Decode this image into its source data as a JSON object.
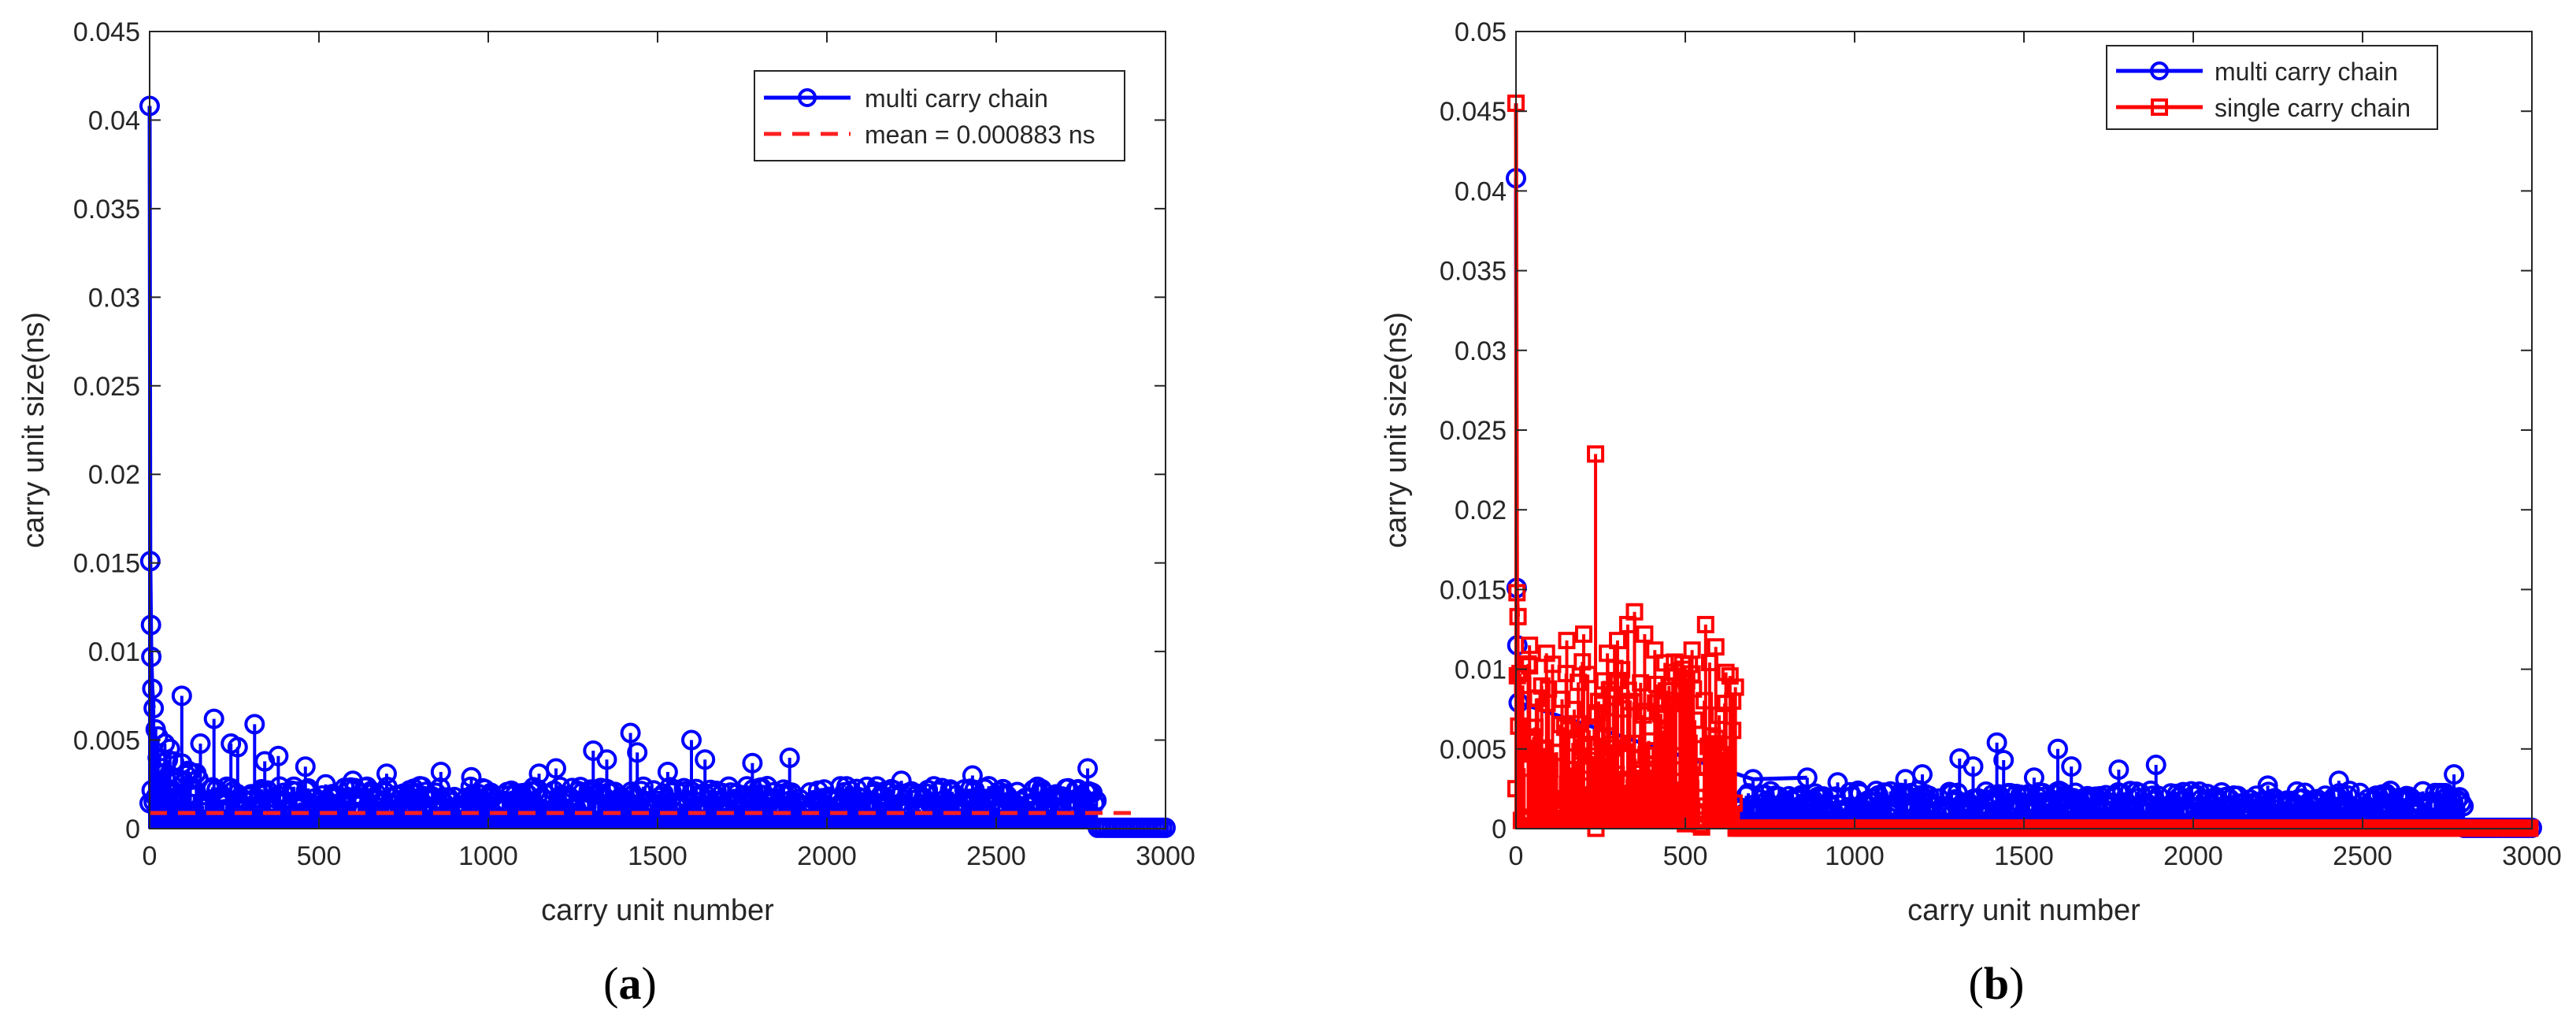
{
  "figure": {
    "panels": [
      {
        "key": "a",
        "label_open": "(",
        "label_letter": "a",
        "label_close": ")"
      },
      {
        "key": "b",
        "label_open": "(",
        "label_letter": "b",
        "label_close": ")"
      }
    ]
  },
  "chart_data": [
    {
      "panel": "a",
      "type": "scatter",
      "style": "stem",
      "title": "",
      "xlabel": "carry unit number",
      "ylabel": "carry unit size(ns)",
      "xlim": [
        0,
        3000
      ],
      "ylim": [
        0,
        0.045
      ],
      "xticks": [
        0,
        500,
        1000,
        1500,
        2000,
        2500,
        3000
      ],
      "xtick_labels": [
        "0",
        "500",
        "1000",
        "1500",
        "2000",
        "2500",
        "3000"
      ],
      "yticks": [
        0,
        0.005,
        0.01,
        0.015,
        0.02,
        0.025,
        0.03,
        0.035,
        0.04,
        0.045
      ],
      "ytick_labels": [
        "0",
        "0.005",
        "0.01",
        "0.015",
        "0.02",
        "0.025",
        "0.03",
        "0.035",
        "0.04",
        "0.045"
      ],
      "grid": false,
      "legend_position": "top-right",
      "series": [
        {
          "name": "multi carry chain",
          "marker": "circle",
          "color": "#0000FF",
          "points": [
            [
              0,
              0.0408
            ],
            [
              2,
              0.0151
            ],
            [
              4,
              0.0115
            ],
            [
              5,
              0.0097
            ],
            [
              8,
              0.0079
            ],
            [
              12,
              0.0068
            ],
            [
              18,
              0.0056
            ],
            [
              25,
              0.0052
            ],
            [
              45,
              0.0048
            ],
            [
              60,
              0.0045
            ],
            [
              95,
              0.0075
            ],
            [
              150,
              0.0048
            ],
            [
              190,
              0.0062
            ],
            [
              240,
              0.0048
            ],
            [
              260,
              0.0046
            ],
            [
              310,
              0.0059
            ],
            [
              340,
              0.0038
            ],
            [
              380,
              0.0041
            ],
            [
              460,
              0.0035
            ],
            [
              520,
              0.0025
            ],
            [
              600,
              0.0027
            ],
            [
              700,
              0.0031
            ],
            [
              860,
              0.0032
            ],
            [
              950,
              0.0029
            ],
            [
              1150,
              0.0031
            ],
            [
              1200,
              0.0034
            ],
            [
              1310,
              0.0044
            ],
            [
              1350,
              0.0039
            ],
            [
              1420,
              0.0054
            ],
            [
              1440,
              0.0043
            ],
            [
              1530,
              0.0032
            ],
            [
              1600,
              0.005
            ],
            [
              1640,
              0.0039
            ],
            [
              1780,
              0.0037
            ],
            [
              1890,
              0.004
            ],
            [
              2220,
              0.0027
            ],
            [
              2430,
              0.003
            ],
            [
              2770,
              0.0034
            ]
          ]
        },
        {
          "name": "mean = 0.000883 ns",
          "line_style": "dashed",
          "color": "#FF2020",
          "x": [
            0,
            2900
          ],
          "y": [
            0.000883,
            0.000883
          ]
        }
      ],
      "annotations": [
        "Dense stems of height ≈0.001–0.003 ns across 0–2800; values near 0 for 2800–3000"
      ]
    },
    {
      "panel": "b",
      "type": "scatter",
      "style": "stem",
      "title": "",
      "xlabel": "carry unit number",
      "ylabel": "carry unit size(ns)",
      "xlim": [
        0,
        3000
      ],
      "ylim": [
        0,
        0.05
      ],
      "xticks": [
        0,
        500,
        1000,
        1500,
        2000,
        2500,
        3000
      ],
      "xtick_labels": [
        "0",
        "500",
        "1000",
        "1500",
        "2000",
        "2500",
        "3000"
      ],
      "yticks": [
        0,
        0.005,
        0.01,
        0.015,
        0.02,
        0.025,
        0.03,
        0.035,
        0.04,
        0.045,
        0.05
      ],
      "ytick_labels": [
        "0",
        "0.005",
        "0.01",
        "0.015",
        "0.02",
        "0.025",
        "0.03",
        "0.035",
        "0.04",
        "0.045",
        "0.05"
      ],
      "grid": false,
      "legend_position": "top-right",
      "series": [
        {
          "name": "multi carry chain",
          "marker": "circle",
          "color": "#0000FF",
          "points": [
            [
              0,
              0.0408
            ],
            [
              2,
              0.0151
            ],
            [
              4,
              0.0115
            ],
            [
              8,
              0.0079
            ],
            [
              700,
              0.0031
            ],
            [
              860,
              0.0032
            ],
            [
              950,
              0.0029
            ],
            [
              1150,
              0.0031
            ],
            [
              1200,
              0.0034
            ],
            [
              1310,
              0.0044
            ],
            [
              1350,
              0.0039
            ],
            [
              1420,
              0.0054
            ],
            [
              1440,
              0.0043
            ],
            [
              1530,
              0.0032
            ],
            [
              1600,
              0.005
            ],
            [
              1640,
              0.0039
            ],
            [
              1780,
              0.0037
            ],
            [
              1890,
              0.004
            ],
            [
              2220,
              0.0027
            ],
            [
              2430,
              0.003
            ],
            [
              2770,
              0.0034
            ]
          ]
        },
        {
          "name": "single carry chain",
          "marker": "square",
          "color": "#FF0000",
          "points": [
            [
              0,
              0.0455
            ],
            [
              3,
              0.0148
            ],
            [
              6,
              0.0133
            ],
            [
              40,
              0.0115
            ],
            [
              90,
              0.011
            ],
            [
              150,
              0.0118
            ],
            [
              200,
              0.0122
            ],
            [
              235,
              0.0235
            ],
            [
              270,
              0.011
            ],
            [
              300,
              0.0118
            ],
            [
              330,
              0.0128
            ],
            [
              350,
              0.0136
            ],
            [
              380,
              0.0122
            ],
            [
              410,
              0.0112
            ],
            [
              440,
              0.0104
            ],
            [
              470,
              0.0098
            ],
            [
              520,
              0.0112
            ],
            [
              560,
              0.0128
            ],
            [
              590,
              0.0114
            ],
            [
              620,
              0.0098
            ],
            [
              640,
              0.008
            ]
          ]
        }
      ],
      "annotations": [
        "Single carry chain spans 0–650 then ≈0 for 650–3000"
      ]
    }
  ]
}
